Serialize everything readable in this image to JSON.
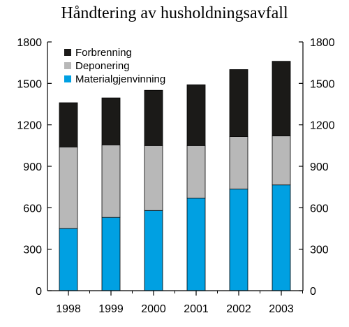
{
  "chart_data": {
    "type": "bar",
    "stacked": true,
    "title": "Håndtering av husholdningsavfall",
    "categories": [
      "1998",
      "1999",
      "2000",
      "2001",
      "2002",
      "2003"
    ],
    "series": [
      {
        "name": "Materialgjenvinning",
        "color": "#00a0e2",
        "values": [
          450,
          530,
          580,
          670,
          735,
          765
        ]
      },
      {
        "name": "Deponering",
        "color": "#b8b8b8",
        "values": [
          590,
          525,
          470,
          380,
          380,
          355
        ]
      },
      {
        "name": "Forbrenning",
        "color": "#1b1a18",
        "values": [
          320,
          340,
          400,
          440,
          485,
          540
        ]
      }
    ],
    "ylim": [
      0,
      1800
    ],
    "yticks": [
      0,
      300,
      600,
      900,
      1200,
      1500,
      1800
    ],
    "ytick_labels": [
      "0",
      "300",
      "600",
      "900",
      "1200",
      "1500",
      "1800"
    ],
    "axis_labels_both_sides": true,
    "grid": false,
    "legend": {
      "position": "top-left",
      "order": [
        "Forbrenning",
        "Deponering",
        "Materialgjenvinning"
      ]
    }
  }
}
